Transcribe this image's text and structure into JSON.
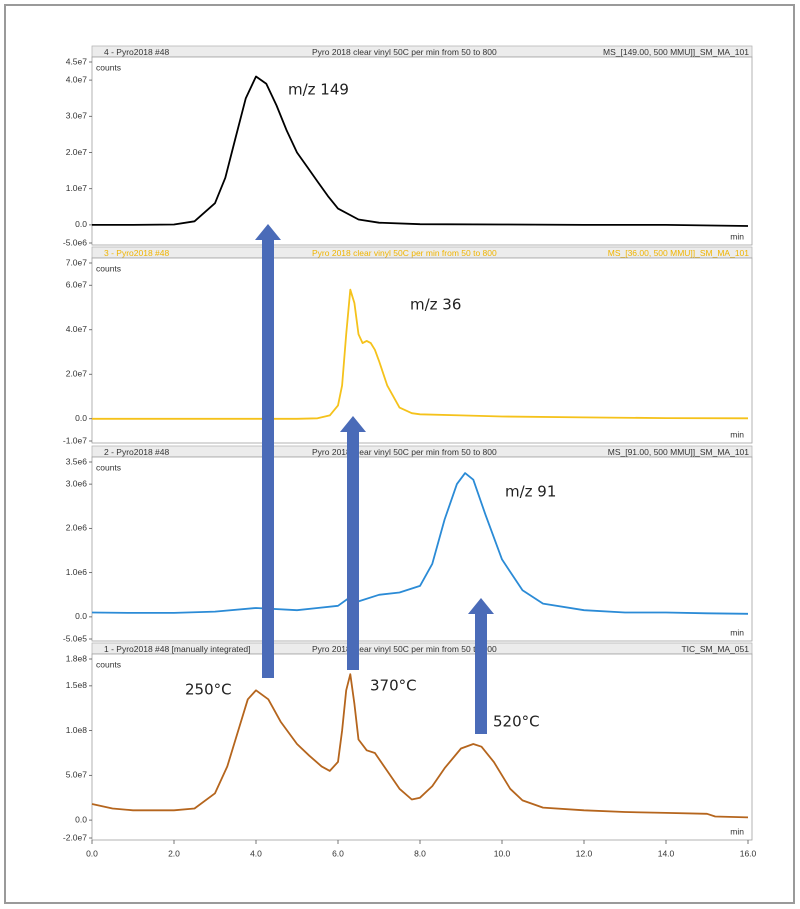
{
  "chart_data": [
    {
      "type": "line",
      "title": "4 - Pyro2018 #48",
      "subtitle": "Pyro 2018 clear vinyl 50C per min from 50 to 800",
      "trace_label": "MS_[149.00, 500 MMU]]_SM_MA_101",
      "y_label": "counts",
      "x_label": "min",
      "annotations": [
        "m/z 149"
      ],
      "color": "#000000",
      "header_color": "#333333",
      "xlim": [
        0,
        16
      ],
      "ylim": [
        -5000000,
        45000000
      ],
      "yticks": [
        {
          "value": -5000000,
          "label": "-5.0e6"
        },
        {
          "value": 0,
          "label": "0.0"
        },
        {
          "value": 10000000,
          "label": "1.0e7"
        },
        {
          "value": 20000000,
          "label": "2.0e7"
        },
        {
          "value": 30000000,
          "label": "3.0e7"
        },
        {
          "value": 40000000,
          "label": "4.0e7"
        },
        {
          "value": 45000000,
          "label": "4.5e7"
        }
      ],
      "x": [
        0,
        1,
        2,
        2.5,
        3,
        3.25,
        3.5,
        3.75,
        4,
        4.25,
        4.5,
        4.75,
        5,
        5.25,
        5.5,
        5.75,
        6,
        6.5,
        7,
        8,
        10,
        12,
        14,
        16
      ],
      "values": [
        0,
        0,
        100000,
        1000000,
        6000000,
        13000000,
        24000000,
        35000000,
        41000000,
        39000000,
        33000000,
        26000000,
        20000000,
        16000000,
        12000000,
        8000000,
        4500000,
        1500000,
        600000,
        200000,
        100000,
        0,
        0,
        -300000
      ]
    },
    {
      "type": "line",
      "title": "3 - Pyro2018 #48",
      "subtitle": "Pyro 2018 clear vinyl 50C per min from 50 to 800",
      "trace_label": "MS_[36.00, 500 MMU]]_SM_MA_101",
      "y_label": "counts",
      "x_label": "min",
      "annotations": [
        "m/z 36"
      ],
      "color": "#f5c21b",
      "header_color": "#f0b400",
      "xlim": [
        0,
        16
      ],
      "ylim": [
        -10000000,
        70000000
      ],
      "yticks": [
        {
          "value": -10000000,
          "label": "-1.0e7"
        },
        {
          "value": 0,
          "label": "0.0"
        },
        {
          "value": 20000000,
          "label": "2.0e7"
        },
        {
          "value": 40000000,
          "label": "4.0e7"
        },
        {
          "value": 60000000,
          "label": "6.0e7"
        },
        {
          "value": 70000000,
          "label": "7.0e7"
        }
      ],
      "x": [
        0,
        2,
        4,
        5,
        5.5,
        5.8,
        6.0,
        6.1,
        6.2,
        6.3,
        6.4,
        6.5,
        6.6,
        6.7,
        6.8,
        6.9,
        7.0,
        7.2,
        7.5,
        7.8,
        8,
        9,
        10,
        12,
        14,
        16
      ],
      "values": [
        0,
        0,
        0,
        0,
        200000,
        1500000,
        6000000,
        15000000,
        38000000,
        58000000,
        52000000,
        38000000,
        34000000,
        35000000,
        34000000,
        31000000,
        26000000,
        15000000,
        5000000,
        2500000,
        2000000,
        1500000,
        1000000,
        600000,
        300000,
        200000
      ]
    },
    {
      "type": "line",
      "title": "2 - Pyro2018 #48",
      "subtitle": "Pyro 2018 clear vinyl 50C per min from 50 to 800",
      "trace_label": "MS_[91.00, 500 MMU]]_SM_MA_101",
      "y_label": "counts",
      "x_label": "min",
      "annotations": [
        "m/z 91"
      ],
      "color": "#2b8bd6",
      "header_color": "#333333",
      "xlim": [
        0,
        16
      ],
      "ylim": [
        -500000,
        3500000
      ],
      "yticks": [
        {
          "value": -500000,
          "label": "-5.0e5"
        },
        {
          "value": 0,
          "label": "0.0"
        },
        {
          "value": 1000000,
          "label": "1.0e6"
        },
        {
          "value": 2000000,
          "label": "2.0e6"
        },
        {
          "value": 3000000,
          "label": "3.0e6"
        },
        {
          "value": 3500000,
          "label": "3.5e6"
        }
      ],
      "x": [
        0,
        1,
        2,
        3,
        4,
        5,
        5.5,
        6,
        6.3,
        6.5,
        7,
        7.5,
        8,
        8.3,
        8.6,
        8.9,
        9.1,
        9.3,
        9.6,
        10,
        10.5,
        11,
        12,
        13,
        14,
        15,
        16
      ],
      "values": [
        100000,
        90000,
        90000,
        120000,
        200000,
        150000,
        200000,
        250000,
        450000,
        350000,
        500000,
        550000,
        700000,
        1200000,
        2200000,
        3000000,
        3250000,
        3100000,
        2300000,
        1300000,
        600000,
        300000,
        150000,
        100000,
        100000,
        80000,
        70000
      ]
    },
    {
      "type": "line",
      "title": "1 - Pyro2018 #48 [manually integrated]",
      "subtitle": "Pyro 2018 clear vinyl 50C per min from 50 to 800",
      "trace_label": "TIC_SM_MA_051",
      "y_label": "counts",
      "x_label": "min",
      "annotations": [
        "250°C",
        "370°C",
        "520°C"
      ],
      "color": "#b5651d",
      "header_color": "#333333",
      "xlim": [
        0,
        16
      ],
      "ylim": [
        -20000000,
        180000000
      ],
      "yticks": [
        {
          "value": -20000000,
          "label": "-2.0e7"
        },
        {
          "value": 0,
          "label": "0.0"
        },
        {
          "value": 50000000,
          "label": "5.0e7"
        },
        {
          "value": 100000000,
          "label": "1.0e8"
        },
        {
          "value": 150000000,
          "label": "1.5e8"
        },
        {
          "value": 180000000,
          "label": "1.8e8"
        }
      ],
      "xticks": [
        {
          "value": 0,
          "label": "0.0"
        },
        {
          "value": 2,
          "label": "2.0"
        },
        {
          "value": 4,
          "label": "4.0"
        },
        {
          "value": 6,
          "label": "6.0"
        },
        {
          "value": 8,
          "label": "8.0"
        },
        {
          "value": 10,
          "label": "10.0"
        },
        {
          "value": 12,
          "label": "12.0"
        },
        {
          "value": 14,
          "label": "14.0"
        },
        {
          "value": 16,
          "label": "16.0"
        }
      ],
      "x": [
        0,
        0.5,
        1,
        2,
        2.5,
        3,
        3.3,
        3.6,
        3.8,
        4,
        4.3,
        4.6,
        5,
        5.3,
        5.6,
        5.8,
        6,
        6.1,
        6.2,
        6.3,
        6.4,
        6.5,
        6.7,
        6.9,
        7.2,
        7.5,
        7.8,
        8,
        8.3,
        8.6,
        9,
        9.3,
        9.5,
        9.8,
        10.2,
        10.5,
        11,
        12,
        13,
        14,
        15,
        15.2,
        16
      ],
      "values": [
        18000000,
        13000000,
        11000000,
        11000000,
        13000000,
        30000000,
        60000000,
        105000000,
        135000000,
        145000000,
        135000000,
        110000000,
        85000000,
        72000000,
        60000000,
        55000000,
        65000000,
        100000000,
        145000000,
        163000000,
        130000000,
        90000000,
        78000000,
        75000000,
        55000000,
        35000000,
        23000000,
        25000000,
        38000000,
        58000000,
        80000000,
        85000000,
        82000000,
        65000000,
        35000000,
        22000000,
        14000000,
        11000000,
        9000000,
        8000000,
        7000000,
        4000000,
        3000000
      ]
    }
  ]
}
